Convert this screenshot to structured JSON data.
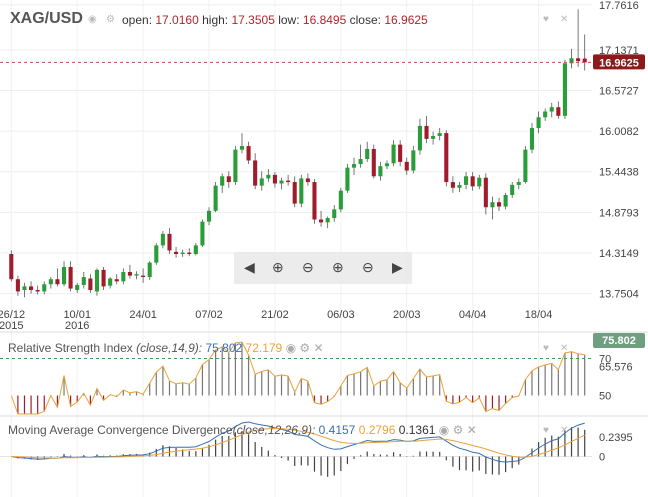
{
  "header": {
    "symbol": "XAG/USD",
    "open_label": "open:",
    "open": "17.0160",
    "high_label": "high:",
    "high": "17.3505",
    "low_label": "low:",
    "low": "16.8495",
    "close_label": "close:",
    "close": "16.9625"
  },
  "colors": {
    "up": "#2a9d3a",
    "down": "#a01c2c",
    "last_price_bg": "#8b1a1a",
    "rsi_line": "#3b6fb0",
    "rsi_signal": "#e8a33a",
    "macd": "#3b6fb0",
    "macd_signal": "#e8a33a",
    "rsi_badge_bg": "#6f9f7f"
  },
  "icons": [
    "eye-icon",
    "gear-icon",
    "heart-icon",
    "close-icon",
    "arrow-left-icon",
    "zoom-in-icon",
    "zoom-out-icon",
    "zoom-in-plus-icon",
    "zoom-out-plus-icon",
    "arrow-right-icon"
  ],
  "chart_data": [
    {
      "type": "candlestick",
      "title": "XAG/USD",
      "ylim": [
        13.55,
        17.76
      ],
      "yticks": [
        "17.7616",
        "17.1371",
        "16.5727",
        "16.0082",
        "15.4438",
        "14.8793",
        "14.3149",
        "13.7504"
      ],
      "ytick_values": [
        17.7616,
        17.1371,
        16.5727,
        16.0082,
        15.4438,
        14.8793,
        14.3149,
        13.7504
      ],
      "last_price": "16.9625",
      "xticks": [
        {
          "label": "26/12",
          "label2": "2015",
          "index": 0
        },
        {
          "label": "10/01",
          "label2": "2016",
          "index": 10
        },
        {
          "label": "24/01",
          "label2": "",
          "index": 20
        },
        {
          "label": "07/02",
          "label2": "",
          "index": 30
        },
        {
          "label": "21/02",
          "label2": "",
          "index": 40
        },
        {
          "label": "06/03",
          "label2": "",
          "index": 50
        },
        {
          "label": "20/03",
          "label2": "",
          "index": 60
        },
        {
          "label": "04/04",
          "label2": "",
          "index": 70
        },
        {
          "label": "18/04",
          "label2": "",
          "index": 80
        }
      ],
      "candles": [
        {
          "o": 14.3,
          "h": 14.35,
          "l": 13.92,
          "c": 13.95
        },
        {
          "o": 13.95,
          "h": 14.0,
          "l": 13.72,
          "c": 13.78
        },
        {
          "o": 13.8,
          "h": 13.9,
          "l": 13.7,
          "c": 13.85
        },
        {
          "o": 13.85,
          "h": 13.92,
          "l": 13.75,
          "c": 13.8
        },
        {
          "o": 13.8,
          "h": 13.86,
          "l": 13.74,
          "c": 13.78
        },
        {
          "o": 13.78,
          "h": 13.92,
          "l": 13.74,
          "c": 13.88
        },
        {
          "o": 13.88,
          "h": 13.98,
          "l": 13.82,
          "c": 13.95
        },
        {
          "o": 13.95,
          "h": 14.1,
          "l": 13.85,
          "c": 13.88
        },
        {
          "o": 13.88,
          "h": 14.2,
          "l": 13.85,
          "c": 14.12
        },
        {
          "o": 14.12,
          "h": 14.2,
          "l": 13.78,
          "c": 13.82
        },
        {
          "o": 13.8,
          "h": 13.9,
          "l": 13.76,
          "c": 13.87
        },
        {
          "o": 13.87,
          "h": 14.05,
          "l": 13.82,
          "c": 13.98
        },
        {
          "o": 13.96,
          "h": 14.02,
          "l": 13.76,
          "c": 13.8
        },
        {
          "o": 13.78,
          "h": 14.1,
          "l": 13.72,
          "c": 14.08
        },
        {
          "o": 14.08,
          "h": 14.12,
          "l": 13.8,
          "c": 13.85
        },
        {
          "o": 13.86,
          "h": 13.98,
          "l": 13.82,
          "c": 13.96
        },
        {
          "o": 13.95,
          "h": 14.02,
          "l": 13.88,
          "c": 13.92
        },
        {
          "o": 13.92,
          "h": 14.1,
          "l": 13.88,
          "c": 14.05
        },
        {
          "o": 14.05,
          "h": 14.15,
          "l": 13.96,
          "c": 14.0
        },
        {
          "o": 14.0,
          "h": 14.06,
          "l": 13.95,
          "c": 14.02
        },
        {
          "o": 14.0,
          "h": 14.1,
          "l": 13.9,
          "c": 13.98
        },
        {
          "o": 13.98,
          "h": 14.2,
          "l": 13.94,
          "c": 14.18
        },
        {
          "o": 14.18,
          "h": 14.45,
          "l": 14.15,
          "c": 14.42
        },
        {
          "o": 14.42,
          "h": 14.62,
          "l": 14.38,
          "c": 14.58
        },
        {
          "o": 14.58,
          "h": 14.66,
          "l": 14.3,
          "c": 14.35
        },
        {
          "o": 14.33,
          "h": 14.4,
          "l": 14.25,
          "c": 14.3
        },
        {
          "o": 14.3,
          "h": 14.36,
          "l": 14.26,
          "c": 14.32
        },
        {
          "o": 14.32,
          "h": 14.38,
          "l": 14.27,
          "c": 14.3
        },
        {
          "o": 14.3,
          "h": 14.45,
          "l": 14.28,
          "c": 14.42
        },
        {
          "o": 14.42,
          "h": 14.78,
          "l": 14.4,
          "c": 14.75
        },
        {
          "o": 14.75,
          "h": 14.95,
          "l": 14.7,
          "c": 14.9
        },
        {
          "o": 14.9,
          "h": 15.3,
          "l": 14.88,
          "c": 15.25
        },
        {
          "o": 15.25,
          "h": 15.42,
          "l": 15.15,
          "c": 15.38
        },
        {
          "o": 15.38,
          "h": 15.45,
          "l": 15.22,
          "c": 15.3
        },
        {
          "o": 15.3,
          "h": 15.8,
          "l": 15.26,
          "c": 15.75
        },
        {
          "o": 15.75,
          "h": 15.98,
          "l": 15.7,
          "c": 15.8
        },
        {
          "o": 15.8,
          "h": 15.86,
          "l": 15.55,
          "c": 15.6
        },
        {
          "o": 15.6,
          "h": 15.7,
          "l": 15.2,
          "c": 15.25
        },
        {
          "o": 15.25,
          "h": 15.45,
          "l": 15.18,
          "c": 15.35
        },
        {
          "o": 15.35,
          "h": 15.48,
          "l": 15.3,
          "c": 15.4
        },
        {
          "o": 15.4,
          "h": 15.44,
          "l": 15.22,
          "c": 15.28
        },
        {
          "o": 15.28,
          "h": 15.36,
          "l": 15.2,
          "c": 15.32
        },
        {
          "o": 15.32,
          "h": 15.4,
          "l": 15.25,
          "c": 15.3
        },
        {
          "o": 15.3,
          "h": 15.38,
          "l": 14.95,
          "c": 15.0
        },
        {
          "o": 15.0,
          "h": 15.4,
          "l": 14.95,
          "c": 15.35
        },
        {
          "o": 15.35,
          "h": 15.42,
          "l": 15.25,
          "c": 15.3
        },
        {
          "o": 15.3,
          "h": 15.34,
          "l": 14.72,
          "c": 14.78
        },
        {
          "o": 14.78,
          "h": 14.9,
          "l": 14.68,
          "c": 14.74
        },
        {
          "o": 14.74,
          "h": 14.82,
          "l": 14.66,
          "c": 14.8
        },
        {
          "o": 14.8,
          "h": 14.98,
          "l": 14.75,
          "c": 14.92
        },
        {
          "o": 14.92,
          "h": 15.22,
          "l": 14.88,
          "c": 15.18
        },
        {
          "o": 15.18,
          "h": 15.55,
          "l": 15.15,
          "c": 15.5
        },
        {
          "o": 15.5,
          "h": 15.64,
          "l": 15.4,
          "c": 15.55
        },
        {
          "o": 15.55,
          "h": 15.82,
          "l": 15.5,
          "c": 15.62
        },
        {
          "o": 15.62,
          "h": 15.86,
          "l": 15.58,
          "c": 15.76
        },
        {
          "o": 15.76,
          "h": 15.82,
          "l": 15.35,
          "c": 15.38
        },
        {
          "o": 15.38,
          "h": 15.58,
          "l": 15.32,
          "c": 15.52
        },
        {
          "o": 15.52,
          "h": 15.6,
          "l": 15.48,
          "c": 15.56
        },
        {
          "o": 15.56,
          "h": 15.88,
          "l": 15.52,
          "c": 15.82
        },
        {
          "o": 15.82,
          "h": 15.88,
          "l": 15.52,
          "c": 15.58
        },
        {
          "o": 15.58,
          "h": 15.64,
          "l": 15.4,
          "c": 15.46
        },
        {
          "o": 15.46,
          "h": 15.8,
          "l": 15.42,
          "c": 15.74
        },
        {
          "o": 15.74,
          "h": 16.18,
          "l": 15.68,
          "c": 16.08
        },
        {
          "o": 16.08,
          "h": 16.22,
          "l": 15.84,
          "c": 15.9
        },
        {
          "o": 15.9,
          "h": 16.0,
          "l": 15.82,
          "c": 15.94
        },
        {
          "o": 15.94,
          "h": 16.05,
          "l": 15.88,
          "c": 15.98
        },
        {
          "o": 15.98,
          "h": 16.02,
          "l": 15.24,
          "c": 15.3
        },
        {
          "o": 15.3,
          "h": 15.38,
          "l": 15.15,
          "c": 15.22
        },
        {
          "o": 15.22,
          "h": 15.3,
          "l": 15.16,
          "c": 15.26
        },
        {
          "o": 15.26,
          "h": 15.44,
          "l": 15.2,
          "c": 15.38
        },
        {
          "o": 15.38,
          "h": 15.44,
          "l": 15.18,
          "c": 15.24
        },
        {
          "o": 15.24,
          "h": 15.4,
          "l": 15.2,
          "c": 15.36
        },
        {
          "o": 15.36,
          "h": 15.42,
          "l": 14.85,
          "c": 14.95
        },
        {
          "o": 14.95,
          "h": 15.1,
          "l": 14.78,
          "c": 15.02
        },
        {
          "o": 15.02,
          "h": 15.08,
          "l": 14.9,
          "c": 14.96
        },
        {
          "o": 14.96,
          "h": 15.15,
          "l": 14.92,
          "c": 15.12
        },
        {
          "o": 15.12,
          "h": 15.3,
          "l": 15.08,
          "c": 15.26
        },
        {
          "o": 15.26,
          "h": 15.35,
          "l": 15.2,
          "c": 15.3
        },
        {
          "o": 15.3,
          "h": 15.8,
          "l": 15.28,
          "c": 15.75
        },
        {
          "o": 15.75,
          "h": 16.12,
          "l": 15.7,
          "c": 16.05
        },
        {
          "o": 16.05,
          "h": 16.28,
          "l": 15.98,
          "c": 16.2
        },
        {
          "o": 16.2,
          "h": 16.32,
          "l": 16.15,
          "c": 16.28
        },
        {
          "o": 16.28,
          "h": 16.4,
          "l": 16.2,
          "c": 16.34
        },
        {
          "o": 16.34,
          "h": 16.42,
          "l": 16.18,
          "c": 16.22
        },
        {
          "o": 16.22,
          "h": 17.0,
          "l": 16.18,
          "c": 16.95
        },
        {
          "o": 16.95,
          "h": 17.15,
          "l": 16.88,
          "c": 17.02
        },
        {
          "o": 17.02,
          "h": 17.7,
          "l": 16.9,
          "c": 16.98
        },
        {
          "o": 17.016,
          "h": 17.3505,
          "l": 16.8495,
          "c": 16.9625
        }
      ]
    },
    {
      "type": "line",
      "title": "Relative Strength Index",
      "params": "(close,14,9):",
      "value": "75.802",
      "signal": "72.179",
      "badge": "75.802",
      "ylim": [
        40,
        80
      ],
      "yticks": [
        "70",
        "65.576",
        "50"
      ],
      "ytick_values": [
        70,
        65.576,
        50
      ],
      "ref_line": 70,
      "histogram_base": 50
    },
    {
      "type": "line",
      "title": "Moving Average Convergence Divergence",
      "params": "(close,12,26,9):",
      "macd": "0.4157",
      "signal": "0.2796",
      "hist": "0.1361",
      "ylim": [
        -0.45,
        0.45
      ],
      "yticks": [
        "0.2395",
        "0"
      ],
      "ytick_values": [
        0.2395,
        0
      ]
    }
  ]
}
